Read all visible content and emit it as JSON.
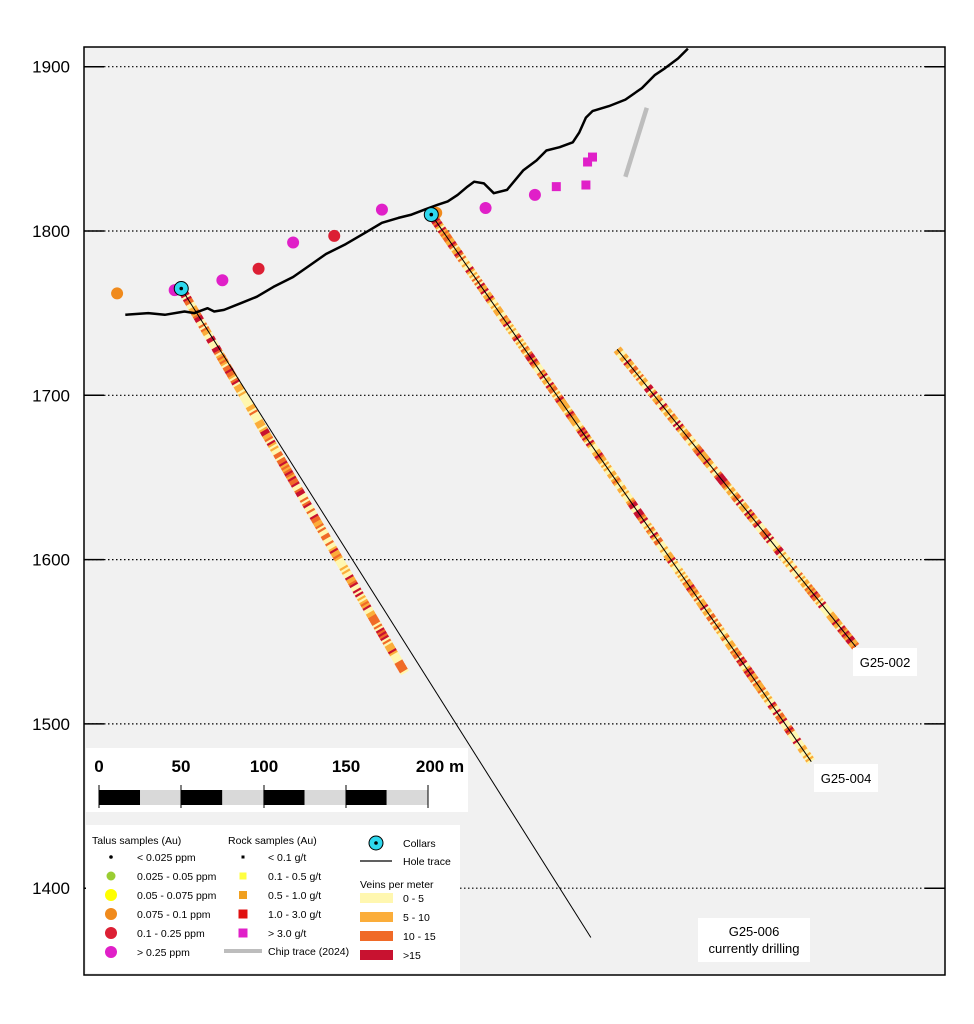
{
  "y_axis": {
    "ticks": [
      1900,
      1800,
      1700,
      1600,
      1500,
      1400
    ],
    "range": [
      1345,
      1913
    ]
  },
  "scale_bar": {
    "labels": [
      "0",
      "50",
      "100",
      "150",
      "200 m"
    ]
  },
  "holes": [
    {
      "id": "G25-002",
      "label": "G25-002",
      "collar": [
        315,
        1728
      ],
      "end": [
        460,
        1547
      ]
    },
    {
      "id": "G25-004",
      "label": "G25-004",
      "collar": [
        202,
        1810
      ],
      "end": [
        433,
        1477
      ]
    },
    {
      "id": "G25-006",
      "label": "G25-006",
      "label_line2": "currently drilling",
      "collar": [
        50,
        1765
      ],
      "end": [
        186,
        1531
      ],
      "trace_end": [
        299,
        1370
      ]
    }
  ],
  "topography": [
    [
      16,
      1749
    ],
    [
      30,
      1750
    ],
    [
      40,
      1749
    ],
    [
      52,
      1751
    ],
    [
      58,
      1750
    ],
    [
      66,
      1753
    ],
    [
      70,
      1751
    ],
    [
      76,
      1752
    ],
    [
      86,
      1756
    ],
    [
      96,
      1760
    ],
    [
      106,
      1766
    ],
    [
      118,
      1772
    ],
    [
      128,
      1779
    ],
    [
      138,
      1786
    ],
    [
      150,
      1792
    ],
    [
      162,
      1799
    ],
    [
      172,
      1805
    ],
    [
      182,
      1808
    ],
    [
      190,
      1810
    ],
    [
      198,
      1813
    ],
    [
      206,
      1816
    ],
    [
      212,
      1818
    ],
    [
      218,
      1822
    ],
    [
      224,
      1827
    ],
    [
      228,
      1830
    ],
    [
      234,
      1829
    ],
    [
      240,
      1823
    ],
    [
      248,
      1825
    ],
    [
      258,
      1837
    ],
    [
      266,
      1843
    ],
    [
      272,
      1849
    ],
    [
      280,
      1851
    ],
    [
      288,
      1854
    ],
    [
      292,
      1860
    ],
    [
      296,
      1869
    ],
    [
      300,
      1873
    ],
    [
      310,
      1876
    ],
    [
      320,
      1880
    ],
    [
      330,
      1887
    ],
    [
      338,
      1895
    ],
    [
      344,
      1899
    ],
    [
      352,
      1905
    ],
    [
      358,
      1911
    ]
  ],
  "talus_samples": [
    {
      "x": 11,
      "y": 1762,
      "cls": "0.075 - 0.1 ppm"
    },
    {
      "x": 46,
      "y": 1764,
      "cls": "> 0.25 ppm"
    },
    {
      "x": 75,
      "y": 1770,
      "cls": "> 0.25 ppm"
    },
    {
      "x": 97,
      "y": 1777,
      "cls": "0.1 - 0.25 ppm"
    },
    {
      "x": 118,
      "y": 1793,
      "cls": "> 0.25 ppm"
    },
    {
      "x": 143,
      "y": 1797,
      "cls": "0.1 - 0.25 ppm"
    },
    {
      "x": 172,
      "y": 1813,
      "cls": "> 0.25 ppm"
    },
    {
      "x": 205,
      "y": 1811,
      "cls": "0.075 - 0.1 ppm"
    },
    {
      "x": 235,
      "y": 1814,
      "cls": "> 0.25 ppm"
    },
    {
      "x": 265,
      "y": 1822,
      "cls": "> 0.25 ppm"
    }
  ],
  "rock_samples": [
    {
      "x": 278,
      "y": 1827,
      "cls": "> 3.0 g/t"
    },
    {
      "x": 296,
      "y": 1828,
      "cls": "> 3.0 g/t"
    },
    {
      "x": 297,
      "y": 1842,
      "cls": "> 3.0 g/t"
    },
    {
      "x": 300,
      "y": 1845,
      "cls": "> 3.0 g/t"
    }
  ],
  "chip_trace": [
    [
      320,
      1833
    ],
    [
      333,
      1875
    ]
  ],
  "legend": {
    "talus_title": "Talus samples (Au)",
    "talus": [
      {
        "label": "< 0.025 ppm",
        "color": "#000000",
        "r": 1.8
      },
      {
        "label": "0.025 - 0.05 ppm",
        "color": "#9acd32",
        "r": 4.5
      },
      {
        "label": "0.05 - 0.075 ppm",
        "color": "#ffff00",
        "r": 6
      },
      {
        "label": "0.075 - 0.1 ppm",
        "color": "#f08a1c",
        "r": 6
      },
      {
        "label": "0.1 - 0.25 ppm",
        "color": "#dc1f34",
        "r": 6
      },
      {
        "label": "> 0.25 ppm",
        "color": "#e020c8",
        "r": 6
      }
    ],
    "rock_title": "Rock samples (Au)",
    "rock": [
      {
        "label": "< 0.1 g/t",
        "color": "#000000",
        "s": 3
      },
      {
        "label": "0.1 - 0.5 g/t",
        "color": "#ffff40",
        "s": 7
      },
      {
        "label": "0.5 - 1.0 g/t",
        "color": "#f0a020",
        "s": 8
      },
      {
        "label": "1.0 - 3.0 g/t",
        "color": "#e01010",
        "s": 9
      },
      {
        "label": "> 3.0 g/t",
        "color": "#e020c8",
        "s": 9
      }
    ],
    "chip_label": "Chip trace (2024)",
    "collars_label": "Collars",
    "hole_trace_label": "Hole trace",
    "veins_title": "Veins per meter",
    "veins": [
      {
        "label": "0 - 5",
        "color": "#fff7b0"
      },
      {
        "label": "5 - 10",
        "color": "#fbad3a"
      },
      {
        "label": "10 - 15",
        "color": "#f06a28"
      },
      {
        "label": ">15",
        "color": "#c81230"
      }
    ]
  },
  "colors": {
    "panel_bg": "#f1f1f1",
    "collar_fill": "#2ed8ee",
    "chip_trace": "#bdbdbd"
  }
}
